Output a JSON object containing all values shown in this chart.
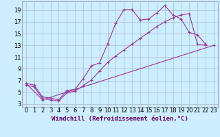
{
  "xlabel": "Windchill (Refroidissement éolien,°C)",
  "bg_color": "#cceeff",
  "grid_color": "#aabbcc",
  "line_color": "#993399",
  "xlim": [
    -0.5,
    23.5
  ],
  "ylim": [
    2.5,
    20.5
  ],
  "xticks": [
    0,
    1,
    2,
    3,
    4,
    5,
    6,
    7,
    8,
    9,
    10,
    11,
    12,
    13,
    14,
    15,
    16,
    17,
    18,
    19,
    20,
    21,
    22,
    23
  ],
  "yticks": [
    3,
    5,
    7,
    9,
    11,
    13,
    15,
    17,
    19
  ],
  "series1_x": [
    0,
    1,
    2,
    3,
    4,
    5,
    6,
    7,
    8,
    9,
    10,
    11,
    12,
    13,
    14,
    15,
    16,
    17,
    18,
    19,
    20,
    21,
    22
  ],
  "series1_y": [
    6.5,
    6.2,
    4.2,
    4.0,
    3.7,
    5.3,
    5.5,
    7.3,
    9.5,
    10.0,
    13.3,
    16.8,
    19.1,
    19.1,
    17.3,
    17.5,
    18.5,
    19.8,
    18.2,
    17.5,
    15.2,
    14.8,
    13.2
  ],
  "series2_x": [
    0,
    1,
    2,
    3,
    4,
    5,
    6,
    7,
    8,
    9,
    10,
    11,
    12,
    13,
    14,
    15,
    16,
    17,
    18,
    19,
    20,
    21,
    22,
    23
  ],
  "series2_y": [
    6.2,
    5.9,
    3.9,
    3.7,
    3.5,
    4.9,
    5.2,
    6.1,
    7.1,
    8.6,
    10.1,
    11.2,
    12.2,
    13.2,
    14.2,
    15.2,
    16.2,
    17.0,
    17.7,
    18.2,
    18.4,
    13.2,
    13.0,
    null
  ],
  "series3_x": [
    0,
    2,
    23
  ],
  "series3_y": [
    6.5,
    3.7,
    13.0
  ],
  "xlabel_fontsize": 6.5,
  "tick_fontsize": 6
}
